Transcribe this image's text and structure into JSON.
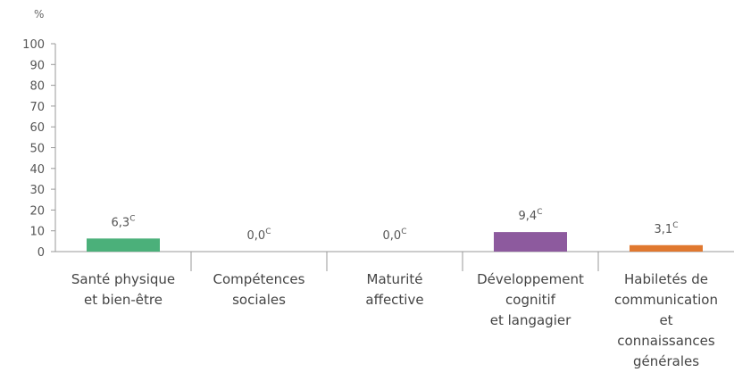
{
  "chart_data": {
    "type": "bar",
    "unit_label": "%",
    "ylim": [
      0,
      100
    ],
    "yticks": [
      0,
      10,
      20,
      30,
      40,
      50,
      60,
      70,
      80,
      90,
      100
    ],
    "grid": false,
    "categories": [
      {
        "lines": [
          "Santé physique",
          "et bien-être"
        ]
      },
      {
        "lines": [
          "Compétences",
          "sociales"
        ]
      },
      {
        "lines": [
          "Maturité",
          "affective"
        ]
      },
      {
        "lines": [
          "Développement",
          "cognitif",
          "et langagier"
        ]
      },
      {
        "lines": [
          "Habiletés de",
          "communication",
          "et",
          "connaissances",
          "générales"
        ]
      }
    ],
    "values": [
      6.3,
      0.0,
      0.0,
      9.4,
      3.1
    ],
    "value_labels": [
      "6,3",
      "0,0",
      "0,0",
      "9,4",
      "3,1"
    ],
    "value_note": "C",
    "colors": [
      "#4bb07a",
      "#bfbfbf",
      "#bfbfbf",
      "#8d5a9e",
      "#e0782f"
    ]
  }
}
